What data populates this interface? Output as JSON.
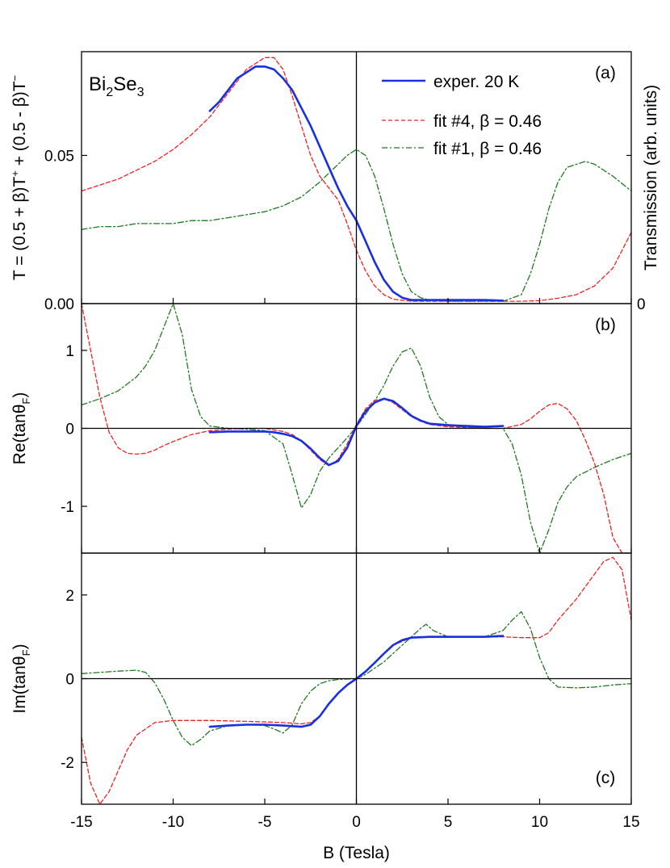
{
  "chart_data": {
    "type": "line",
    "xlabel": "B (Tesla)",
    "xlim": [
      -15,
      15
    ],
    "xticks": [
      -15,
      -10,
      -5,
      0,
      5,
      10,
      15
    ],
    "xtick_labels": [
      "-15",
      "-10",
      "-5",
      "0",
      "5",
      "10",
      "15"
    ],
    "colors": {
      "exp": "#1a2fe0",
      "fit4": "#ee2222",
      "fit1": "#1e7a1e"
    },
    "legend": {
      "position": "top-right of panel (a)",
      "entries": [
        "exper. 20 K",
        "fit #4, β = 0.46",
        "fit #1, β = 0.46"
      ]
    },
    "panels": [
      {
        "id": "a",
        "label": "(a)",
        "ylabel_parts": [
          "T = (0.5 + β)T",
          "+",
          " + (0.5 - β)T",
          "−"
        ],
        "ylabel_right": "Transmission (arb. units)",
        "right_tick_label": "0",
        "ylim": [
          0,
          0.085
        ],
        "yticks": [
          0,
          0.05
        ],
        "ytick_labels": [
          "0.00",
          "0.05"
        ],
        "material_parts": [
          "Bi",
          "2",
          "Se",
          "3"
        ],
        "series": [
          {
            "name": "exper. 20 K",
            "key": "exp",
            "style": "solid",
            "x": [
              -8,
              -7.5,
              -7,
              -6.5,
              -6,
              -5.5,
              -5,
              -4.5,
              -4,
              -3.5,
              -3,
              -2.5,
              -2,
              -1.5,
              -1,
              -0.5,
              0,
              0.5,
              1,
              1.5,
              2,
              2.5,
              3,
              4,
              5,
              6,
              7,
              8
            ],
            "y": [
              0.065,
              0.068,
              0.072,
              0.076,
              0.078,
              0.08,
              0.08,
              0.079,
              0.076,
              0.072,
              0.066,
              0.06,
              0.053,
              0.046,
              0.039,
              0.033,
              0.028,
              0.021,
              0.014,
              0.008,
              0.004,
              0.002,
              0.0012,
              0.0012,
              0.0012,
              0.0012,
              0.0012,
              0.001
            ]
          },
          {
            "name": "fit #4, β = 0.46",
            "key": "fit4",
            "style": "dashed",
            "x": [
              -15,
              -14,
              -13,
              -12,
              -11,
              -10,
              -9,
              -8,
              -7,
              -6,
              -5,
              -4.5,
              -4,
              -3.5,
              -3,
              -2.5,
              -2,
              -1.5,
              -1,
              -0.5,
              0,
              0.5,
              1,
              1.5,
              2,
              3,
              4,
              5,
              6,
              7,
              8,
              9,
              10,
              11,
              12,
              13,
              14,
              15
            ],
            "y": [
              0.038,
              0.04,
              0.042,
              0.045,
              0.048,
              0.052,
              0.057,
              0.063,
              0.071,
              0.079,
              0.083,
              0.083,
              0.079,
              0.07,
              0.06,
              0.05,
              0.043,
              0.039,
              0.035,
              0.027,
              0.018,
              0.011,
              0.006,
              0.003,
              0.0015,
              0.0008,
              0.0008,
              0.0008,
              0.0008,
              0.0008,
              0.0008,
              0.0008,
              0.001,
              0.0018,
              0.003,
              0.006,
              0.012,
              0.024
            ]
          },
          {
            "name": "fit #1, β = 0.46",
            "key": "fit1",
            "style": "dashdot",
            "x": [
              -15,
              -14,
              -13,
              -12,
              -11,
              -10,
              -9,
              -8,
              -7,
              -6,
              -5,
              -4,
              -3,
              -2,
              -1.5,
              -1,
              -0.5,
              0,
              0.5,
              1,
              1.5,
              2,
              2.5,
              3,
              3.5,
              4,
              5,
              6,
              7,
              8,
              9,
              9.5,
              10,
              10.5,
              11,
              11.5,
              12,
              12.5,
              13,
              14,
              15
            ],
            "y": [
              0.025,
              0.026,
              0.026,
              0.027,
              0.027,
              0.027,
              0.028,
              0.028,
              0.029,
              0.03,
              0.031,
              0.033,
              0.036,
              0.041,
              0.044,
              0.047,
              0.05,
              0.052,
              0.05,
              0.043,
              0.032,
              0.02,
              0.01,
              0.004,
              0.002,
              0.0012,
              0.0008,
              0.0008,
              0.0008,
              0.0008,
              0.003,
              0.01,
              0.02,
              0.032,
              0.041,
              0.046,
              0.047,
              0.048,
              0.047,
              0.043,
              0.038
            ]
          }
        ]
      },
      {
        "id": "b",
        "label": "(b)",
        "ylabel_parts": [
          "Re(tanθ",
          "F",
          ")"
        ],
        "ylim": [
          -1.6,
          1.6
        ],
        "yticks": [
          -1,
          0,
          1
        ],
        "ytick_labels": [
          "-1",
          "0",
          "1"
        ],
        "series": [
          {
            "name": "exper. 20 K",
            "key": "exp",
            "style": "solid",
            "x": [
              -8,
              -7,
              -6,
              -5,
              -4.5,
              -4,
              -3.5,
              -3,
              -2.5,
              -2,
              -1.5,
              -1,
              -0.5,
              0,
              0.5,
              1,
              1.5,
              2,
              2.5,
              3,
              3.5,
              4,
              5,
              6,
              7,
              8
            ],
            "y": [
              -0.05,
              -0.04,
              -0.04,
              -0.04,
              -0.05,
              -0.07,
              -0.1,
              -0.16,
              -0.26,
              -0.38,
              -0.47,
              -0.42,
              -0.25,
              0.03,
              0.22,
              0.33,
              0.38,
              0.35,
              0.26,
              0.16,
              0.1,
              0.06,
              0.04,
              0.03,
              0.02,
              0.03
            ]
          },
          {
            "name": "fit #4, β = 0.46",
            "key": "fit4",
            "style": "dashed",
            "x": [
              -15,
              -14.5,
              -14,
              -13.5,
              -13,
              -12.5,
              -12,
              -11.5,
              -11,
              -10.5,
              -10,
              -9,
              -8,
              -7,
              -6,
              -5,
              -4,
              -3.5,
              -3,
              -2.5,
              -2,
              -1.5,
              -1,
              -0.5,
              0,
              0.5,
              1,
              1.5,
              2,
              2.5,
              3,
              3.5,
              4,
              5,
              6,
              7,
              8,
              9,
              9.5,
              10,
              10.5,
              11,
              11.5,
              12,
              12.5,
              13,
              13.5,
              14,
              14.5,
              15
            ],
            "y": [
              1.6,
              1.0,
              0.4,
              -0.05,
              -0.25,
              -0.32,
              -0.33,
              -0.32,
              -0.28,
              -0.22,
              -0.17,
              -0.08,
              -0.03,
              -0.01,
              0,
              0,
              -0.04,
              -0.08,
              -0.16,
              -0.28,
              -0.4,
              -0.48,
              -0.4,
              -0.2,
              0.05,
              0.25,
              0.36,
              0.38,
              0.33,
              0.24,
              0.15,
              0.09,
              0.05,
              0.02,
              0.01,
              0,
              0,
              0.05,
              0.12,
              0.22,
              0.3,
              0.32,
              0.25,
              0.1,
              -0.15,
              -0.45,
              -0.85,
              -1.4,
              -1.6,
              -1.6
            ]
          },
          {
            "name": "fit #1, β = 0.46",
            "key": "fit1",
            "style": "dashdot",
            "x": [
              -15,
              -14,
              -13,
              -12,
              -11.5,
              -11,
              -10.5,
              -10,
              -9.5,
              -9,
              -8.5,
              -8,
              -7,
              -6,
              -5,
              -4,
              -3.5,
              -3,
              -2.5,
              -2,
              -1.5,
              -1,
              -0.5,
              0,
              0.5,
              1,
              1.5,
              2,
              2.5,
              3,
              3.5,
              4,
              4.5,
              5,
              6,
              7,
              8,
              8.5,
              9,
              9.5,
              10,
              10.5,
              11,
              11.5,
              12,
              13,
              14,
              15
            ],
            "y": [
              0.3,
              0.38,
              0.48,
              0.66,
              0.8,
              1.0,
              1.3,
              1.6,
              1.2,
              0.5,
              0.15,
              0.03,
              0,
              -0.01,
              -0.03,
              -0.2,
              -0.6,
              -1.02,
              -0.85,
              -0.55,
              -0.38,
              -0.25,
              -0.12,
              0.02,
              0.18,
              0.35,
              0.55,
              0.8,
              0.98,
              1.03,
              0.8,
              0.4,
              0.15,
              0.05,
              0.01,
              0,
              0,
              -0.2,
              -0.6,
              -1.2,
              -1.6,
              -1.3,
              -0.95,
              -0.75,
              -0.62,
              -0.5,
              -0.4,
              -0.32
            ]
          }
        ]
      },
      {
        "id": "c",
        "label": "(c)",
        "ylabel_parts": [
          "Im(tanθ",
          "F",
          ")"
        ],
        "ylim": [
          -3,
          3
        ],
        "yticks": [
          -2,
          0,
          2
        ],
        "ytick_labels": [
          "-2",
          "0",
          "2"
        ],
        "series": [
          {
            "name": "exper. 20 K",
            "key": "exp",
            "style": "solid",
            "x": [
              -8,
              -7,
              -6,
              -5,
              -4,
              -3,
              -2.5,
              -2,
              -1.5,
              -1,
              -0.5,
              0,
              0.5,
              1,
              1.5,
              2,
              2.5,
              3,
              4,
              5,
              6,
              7,
              8
            ],
            "y": [
              -1.15,
              -1.12,
              -1.1,
              -1.1,
              -1.12,
              -1.15,
              -1.1,
              -0.9,
              -0.6,
              -0.35,
              -0.15,
              0,
              0.17,
              0.38,
              0.6,
              0.8,
              0.92,
              0.98,
              1.0,
              1.0,
              1.0,
              1.0,
              1.02
            ]
          },
          {
            "name": "fit #4, β = 0.46",
            "key": "fit4",
            "style": "dashed",
            "x": [
              -15,
              -14.5,
              -14,
              -13.5,
              -13,
              -12.5,
              -12,
              -11,
              -10,
              -9,
              -8,
              -6,
              -4,
              -3,
              -2.5,
              -2,
              -1.5,
              -1,
              -0.5,
              0,
              0.5,
              1,
              1.5,
              2,
              3,
              4,
              6,
              8,
              9,
              10,
              10.5,
              11,
              12,
              13,
              13.5,
              14,
              14.5,
              15
            ],
            "y": [
              -1.4,
              -2.5,
              -3.0,
              -2.7,
              -2.2,
              -1.7,
              -1.35,
              -1.05,
              -1.0,
              -1.0,
              -1.0,
              -1.02,
              -1.05,
              -1.08,
              -1.05,
              -0.9,
              -0.6,
              -0.35,
              -0.15,
              0,
              0.17,
              0.38,
              0.6,
              0.8,
              0.98,
              1.0,
              1.0,
              1.0,
              0.98,
              0.98,
              1.1,
              1.4,
              1.9,
              2.5,
              2.8,
              2.9,
              2.6,
              1.4
            ]
          },
          {
            "name": "fit #1, β = 0.46",
            "key": "fit1",
            "style": "dashdot",
            "x": [
              -15,
              -14,
              -13,
              -12,
              -11.5,
              -11,
              -10.5,
              -10,
              -9.5,
              -9,
              -8.5,
              -8,
              -7,
              -6,
              -5,
              -4.5,
              -4,
              -3.5,
              -3,
              -2.5,
              -2,
              -1.5,
              -1,
              -0.5,
              0,
              0.5,
              1,
              1.5,
              2,
              2.5,
              3,
              3.5,
              3.8,
              4.2,
              5,
              6,
              7,
              8,
              8.5,
              9,
              9.5,
              10,
              10.5,
              11,
              12,
              13,
              14,
              15
            ],
            "y": [
              0.12,
              0.15,
              0.18,
              0.2,
              0.15,
              -0.1,
              -0.5,
              -1.0,
              -1.4,
              -1.6,
              -1.45,
              -1.25,
              -1.12,
              -1.1,
              -1.12,
              -1.2,
              -1.3,
              -1.1,
              -0.6,
              -0.3,
              -0.12,
              -0.05,
              -0.02,
              -0.01,
              0,
              0.1,
              0.25,
              0.4,
              0.6,
              0.8,
              1.0,
              1.2,
              1.3,
              1.15,
              1.0,
              1.0,
              1.0,
              1.15,
              1.4,
              1.6,
              1.2,
              0.5,
              0.0,
              -0.2,
              -0.22,
              -0.2,
              -0.15,
              -0.12
            ]
          }
        ]
      }
    ]
  }
}
